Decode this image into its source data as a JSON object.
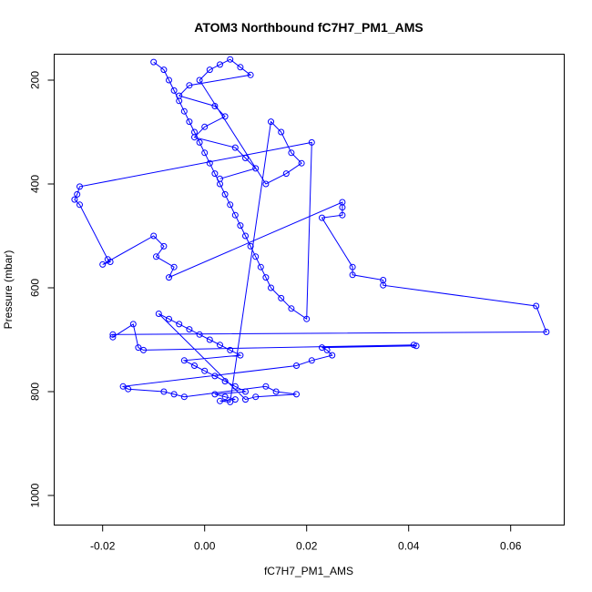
{
  "chart_data": {
    "type": "scatter",
    "title": "ATOM3 Northbound fC7H7_PM1_AMS",
    "xlabel": "fC7H7_PM1_AMS",
    "ylabel": "Pressure (mbar)",
    "xlim": [
      -0.0295,
      0.0705
    ],
    "ylim": [
      1057,
      150
    ],
    "y_reversed": true,
    "x_ticks": [
      -0.02,
      0.0,
      0.02,
      0.04,
      0.06
    ],
    "x_tick_labels": [
      "-0.02",
      "0.00",
      "0.02",
      "0.04",
      "0.06"
    ],
    "y_ticks": [
      200,
      400,
      600,
      800,
      1000
    ],
    "y_tick_labels": [
      "200",
      "400",
      "600",
      "800",
      "1000"
    ],
    "grid": false,
    "legend": "none",
    "color": "#0000ff",
    "series": [
      {
        "x": [
          -0.01,
          -0.008,
          -0.007,
          -0.006,
          -0.005,
          -0.004,
          -0.003,
          -0.002,
          -0.001,
          0.0,
          0.001,
          0.002,
          0.003,
          0.004,
          0.005,
          0.006,
          0.007,
          0.008,
          0.009,
          0.01,
          0.011,
          0.012,
          0.013,
          0.015,
          0.017,
          0.02,
          0.021,
          -0.0245,
          -0.025,
          -0.0255,
          -0.0245,
          -0.019,
          -0.0185,
          -0.02,
          -0.01,
          -0.008,
          -0.0095,
          -0.006,
          -0.007,
          0.027,
          0.027,
          0.027,
          0.023,
          0.029,
          0.029,
          0.035,
          0.035,
          0.065,
          0.067,
          -0.018,
          -0.018,
          -0.014,
          -0.013,
          -0.012,
          0.041,
          0.0415,
          0.023,
          0.024,
          0.025,
          0.021,
          0.018,
          -0.016,
          -0.015,
          -0.008,
          -0.006,
          -0.004,
          0.012,
          0.014,
          0.018,
          0.01,
          0.008,
          -0.009,
          -0.007,
          -0.005,
          -0.003,
          -0.001,
          0.001,
          0.003,
          0.005,
          0.007,
          -0.004,
          -0.002,
          0.0,
          0.002,
          0.004,
          0.006,
          0.008,
          0.002,
          0.004,
          0.006,
          0.003,
          0.005,
          0.013,
          0.015,
          0.017,
          0.019,
          0.016,
          0.012,
          -0.001,
          0.001,
          0.003,
          0.005,
          0.007,
          0.009,
          -0.003,
          -0.005,
          0.002,
          0.004,
          0.0,
          -0.002,
          0.006,
          0.008,
          0.01,
          0.003
        ],
        "y": [
          165,
          180,
          200,
          220,
          240,
          260,
          280,
          300,
          320,
          340,
          360,
          380,
          400,
          420,
          440,
          460,
          480,
          500,
          520,
          540,
          560,
          580,
          600,
          620,
          640,
          660,
          320,
          405,
          420,
          430,
          440,
          545,
          550,
          555,
          500,
          520,
          540,
          560,
          580,
          435,
          445,
          460,
          465,
          560,
          575,
          585,
          595,
          635,
          685,
          690,
          695,
          670,
          715,
          720,
          710,
          712,
          715,
          720,
          730,
          740,
          750,
          790,
          795,
          800,
          805,
          810,
          790,
          800,
          805,
          810,
          815,
          650,
          660,
          670,
          680,
          690,
          700,
          710,
          720,
          730,
          740,
          750,
          760,
          770,
          780,
          790,
          800,
          805,
          810,
          815,
          818,
          820,
          280,
          300,
          340,
          360,
          380,
          400,
          200,
          180,
          170,
          160,
          175,
          190,
          210,
          230,
          250,
          270,
          290,
          310,
          330,
          350,
          370,
          390
        ]
      }
    ]
  }
}
